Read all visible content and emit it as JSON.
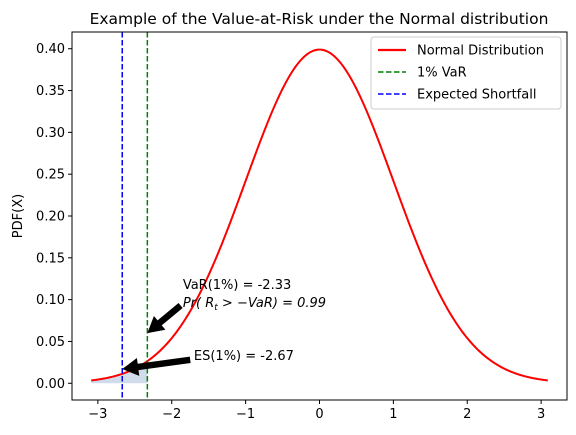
{
  "chart_data": {
    "type": "line",
    "title": "Example of the Value-at-Risk under the Normal distribution",
    "xlabel": "",
    "ylabel": "PDF(X)",
    "xlim": [
      -3.35,
      3.35
    ],
    "ylim": [
      -0.02,
      0.42
    ],
    "x_ticks": [
      -3,
      -2,
      -1,
      0,
      1,
      2,
      3
    ],
    "x_tick_labels": [
      "−3",
      "−2",
      "−1",
      "0",
      "1",
      "2",
      "3"
    ],
    "y_ticks": [
      0.0,
      0.05,
      0.1,
      0.15,
      0.2,
      0.25,
      0.3,
      0.35,
      0.4
    ],
    "y_tick_labels": [
      "0.00",
      "0.05",
      "0.10",
      "0.15",
      "0.20",
      "0.25",
      "0.30",
      "0.35",
      "0.40"
    ],
    "grid": false,
    "legend_position": "top-right",
    "series": [
      {
        "name": "Normal Distribution",
        "kind": "pdf",
        "mean": 0,
        "std": 1,
        "x_range": [
          -3.09,
          3.09
        ],
        "color": "#ff0000",
        "style": "solid"
      },
      {
        "name": "1% VaR",
        "kind": "vline",
        "x": -2.33,
        "color": "#008000",
        "style": "dashed"
      },
      {
        "name": "Expected Shortfall",
        "kind": "vline",
        "x": -2.67,
        "color": "#0000ff",
        "style": "dashed"
      }
    ],
    "shaded_tail": {
      "x_from": -3.09,
      "x_to": -2.33,
      "color": "#b0c4de"
    },
    "annotations": [
      {
        "line1": "VaR(1%) = -2.33",
        "line2_prefix": "Pr(",
        "line2_var": "R",
        "line2_sub": "t",
        "line2_rest": " > −VaR) = 0.99",
        "text_x": -1.85,
        "text_y": 0.12,
        "arrow_to": [
          -2.33,
          0.06
        ],
        "arrow_from": [
          -1.88,
          0.093
        ]
      },
      {
        "text": "ES(1%) = -2.67",
        "text_x": -1.7,
        "text_y": 0.03,
        "arrow_to": [
          -2.67,
          0.017
        ],
        "arrow_from": [
          -1.75,
          0.028
        ]
      }
    ]
  }
}
